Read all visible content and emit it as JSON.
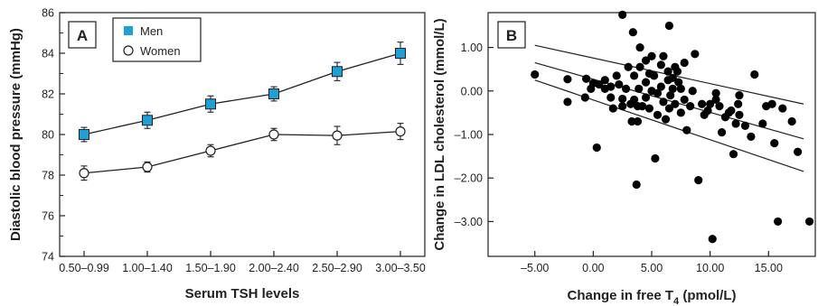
{
  "chart_data": [
    {
      "type": "line",
      "panel_label": "A",
      "xlabel": "Serum TSH levels",
      "ylabel": "Diastolic blood pressure (mmHg)",
      "categories": [
        "0.50–0.99",
        "1.00–1.40",
        "1.50–1.90",
        "2.00–2.40",
        "2.50–2.90",
        "3.00–3.50"
      ],
      "ylim": [
        74,
        86
      ],
      "yticks": [
        "74",
        "76",
        "78",
        "80",
        "82",
        "84",
        "86"
      ],
      "legend_position": "top-left",
      "series": [
        {
          "name": "Men",
          "marker": "square",
          "color": "#1ba1d9",
          "values": [
            80.0,
            80.7,
            81.5,
            82.0,
            83.1,
            84.0
          ],
          "error": [
            0.35,
            0.4,
            0.4,
            0.35,
            0.45,
            0.55
          ]
        },
        {
          "name": "Women",
          "marker": "circle",
          "color": "#ffffff",
          "values": [
            78.1,
            78.4,
            79.2,
            80.0,
            79.95,
            80.15
          ],
          "error": [
            0.35,
            0.25,
            0.3,
            0.3,
            0.45,
            0.4
          ]
        }
      ]
    },
    {
      "type": "scatter",
      "panel_label": "B",
      "xlabel_main": "Change in free T",
      "xlabel_sub": "4",
      "xlabel_tail": " (pmol/L)",
      "ylabel": "Change in LDL cholesterol (mmol/L)",
      "xlim": [
        -9,
        19
      ],
      "ylim": [
        -3.8,
        1.8
      ],
      "xticks": [
        -5,
        0,
        5,
        10,
        15
      ],
      "xtick_labels": [
        "–5.00",
        "0.00",
        "5.00",
        "10.00",
        "15.00"
      ],
      "yticks": [
        1,
        0,
        -1,
        -2,
        -3
      ],
      "ytick_labels": [
        "1.00",
        "0.00",
        "–1.00",
        "–2.00",
        "–3.00"
      ],
      "marker_color": "#000000",
      "points": [
        [
          -5.0,
          0.38
        ],
        [
          -2.2,
          0.27
        ],
        [
          -2.2,
          -0.25
        ],
        [
          -0.6,
          0.28
        ],
        [
          -0.7,
          -0.15
        ],
        [
          -0.2,
          0.05
        ],
        [
          0.0,
          0.18
        ],
        [
          0.3,
          -1.3
        ],
        [
          0.5,
          0.15
        ],
        [
          1.0,
          0.25
        ],
        [
          1.0,
          0.05
        ],
        [
          1.5,
          0.1
        ],
        [
          1.5,
          -0.15
        ],
        [
          1.7,
          -0.4
        ],
        [
          2.0,
          0.35
        ],
        [
          2.2,
          0.15
        ],
        [
          2.5,
          -0.18
        ],
        [
          2.5,
          -0.35
        ],
        [
          2.5,
          1.75
        ],
        [
          2.8,
          0.05
        ],
        [
          3.0,
          0.55
        ],
        [
          3.2,
          -0.3
        ],
        [
          3.3,
          -0.7
        ],
        [
          3.4,
          1.35
        ],
        [
          3.5,
          0.35
        ],
        [
          3.5,
          -0.2
        ],
        [
          3.7,
          -2.15
        ],
        [
          3.8,
          -0.35
        ],
        [
          3.8,
          -0.7
        ],
        [
          3.9,
          0.05
        ],
        [
          4.0,
          1.0
        ],
        [
          4.0,
          0.55
        ],
        [
          4.2,
          -0.35
        ],
        [
          4.5,
          0.7
        ],
        [
          4.5,
          0.2
        ],
        [
          4.5,
          -0.15
        ],
        [
          4.8,
          0.4
        ],
        [
          4.8,
          -0.4
        ],
        [
          5.0,
          0.8
        ],
        [
          5.0,
          0.0
        ],
        [
          5.2,
          0.35
        ],
        [
          5.3,
          -1.55
        ],
        [
          5.5,
          -0.05
        ],
        [
          5.5,
          -0.55
        ],
        [
          5.8,
          0.6
        ],
        [
          5.8,
          0.1
        ],
        [
          6.0,
          0.8
        ],
        [
          6.0,
          -0.25
        ],
        [
          6.2,
          -0.65
        ],
        [
          6.4,
          0.45
        ],
        [
          6.4,
          0.25
        ],
        [
          6.5,
          -0.4
        ],
        [
          6.5,
          1.5
        ],
        [
          6.6,
          -0.1
        ],
        [
          6.8,
          0.3
        ],
        [
          6.8,
          0.05
        ],
        [
          7.0,
          0.55
        ],
        [
          7.0,
          -0.3
        ],
        [
          7.2,
          0.45
        ],
        [
          7.3,
          0.2
        ],
        [
          7.5,
          0.05
        ],
        [
          7.5,
          -0.5
        ],
        [
          7.8,
          0.65
        ],
        [
          7.8,
          -0.2
        ],
        [
          8.0,
          -0.9
        ],
        [
          8.3,
          -0.35
        ],
        [
          8.5,
          0.0
        ],
        [
          8.7,
          0.85
        ],
        [
          9.0,
          -2.05
        ],
        [
          9.3,
          -0.3
        ],
        [
          9.5,
          -0.55
        ],
        [
          9.8,
          -0.45
        ],
        [
          10.0,
          -0.3
        ],
        [
          10.2,
          -3.4
        ],
        [
          10.5,
          -0.2
        ],
        [
          10.5,
          -0.05
        ],
        [
          10.8,
          -0.35
        ],
        [
          11.0,
          -0.95
        ],
        [
          11.3,
          -0.6
        ],
        [
          11.6,
          -0.5
        ],
        [
          11.8,
          -0.45
        ],
        [
          12.0,
          -1.45
        ],
        [
          12.2,
          -0.75
        ],
        [
          12.4,
          -0.3
        ],
        [
          12.5,
          -0.1
        ],
        [
          12.5,
          -0.55
        ],
        [
          13.0,
          -0.8
        ],
        [
          13.5,
          -1.05
        ],
        [
          13.8,
          0.38
        ],
        [
          14.5,
          -0.75
        ],
        [
          14.8,
          -0.35
        ],
        [
          15.3,
          -0.3
        ],
        [
          15.5,
          -1.2
        ],
        [
          15.8,
          -3.0
        ],
        [
          16.2,
          -0.4
        ],
        [
          17.0,
          -0.7
        ],
        [
          17.5,
          -1.4
        ],
        [
          18.5,
          -3.0
        ]
      ],
      "fit_lines": [
        {
          "name": "upper",
          "x": [
            -5,
            18
          ],
          "y": [
            1.05,
            -0.3
          ]
        },
        {
          "name": "middle",
          "x": [
            -5,
            18
          ],
          "y": [
            0.65,
            -1.1
          ]
        },
        {
          "name": "lower",
          "x": [
            -5,
            18
          ],
          "y": [
            0.25,
            -1.85
          ]
        }
      ]
    }
  ]
}
